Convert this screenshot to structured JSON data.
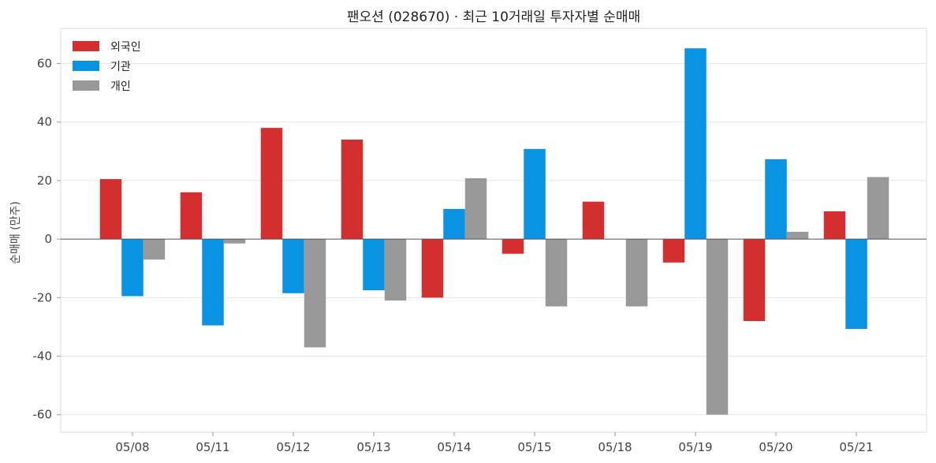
{
  "chart_data": {
    "type": "bar",
    "title": "팬오션 (028670) · 최근 10거래일 투자자별 순매매",
    "xlabel": "",
    "ylabel": "순매매 (만주)",
    "categories": [
      "05/08",
      "05/11",
      "05/12",
      "05/13",
      "05/14",
      "05/15",
      "05/18",
      "05/19",
      "05/20",
      "05/21"
    ],
    "series": [
      {
        "name": "외국인",
        "color": "#d32f2f",
        "values": [
          20.5,
          16,
          38,
          34,
          -20,
          -5,
          12.8,
          -8,
          -28,
          9.5
        ]
      },
      {
        "name": "기관",
        "color": "#0b93e3",
        "values": [
          -19.5,
          -29.5,
          -18.5,
          -17.5,
          10.3,
          30.8,
          0,
          65.2,
          27.3,
          -30.7
        ]
      },
      {
        "name": "개인",
        "color": "#999999",
        "values": [
          -7,
          -1.5,
          -37,
          -21,
          20.8,
          -23,
          -23,
          -60,
          2.5,
          21.2
        ]
      }
    ],
    "yticks": [
      -60,
      -40,
      -20,
      0,
      20,
      40,
      60
    ],
    "ylim": [
      -66,
      72
    ],
    "grid": true,
    "legend": "top-left"
  }
}
